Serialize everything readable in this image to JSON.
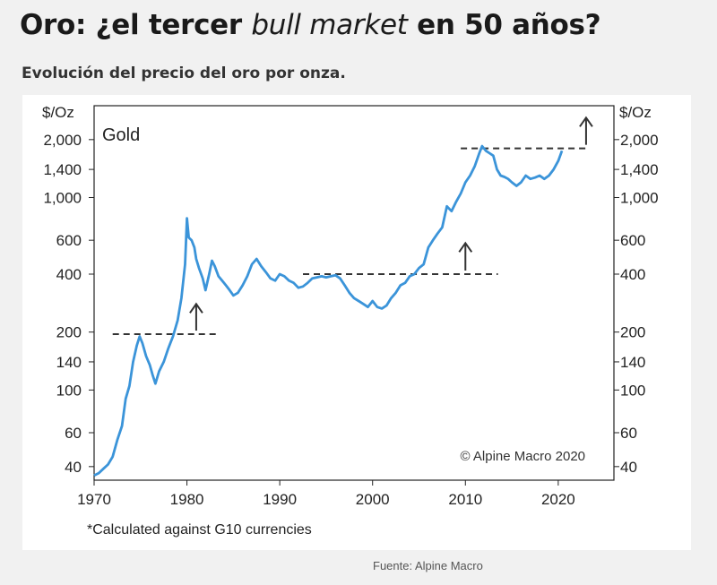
{
  "headline": {
    "part1": "Oro: ¿el tercer ",
    "italic": "bull market",
    "part2": " en 50 años?"
  },
  "subheadline": "Evolución del precio del oro por onza.",
  "source": "Fuente: Alpine Macro",
  "chart_data": {
    "type": "line",
    "title": "",
    "series_label": "Gold",
    "y_unit_left": "$/Oz",
    "y_unit_right": "$/Oz",
    "y_scale": "log",
    "ylim": [
      34,
      3000
    ],
    "xlim": [
      1970,
      2026
    ],
    "x_ticks": [
      "1970",
      "1980",
      "1990",
      "2000",
      "2010",
      "2020"
    ],
    "y_ticks": [
      {
        "value": 2000,
        "label": "2,000"
      },
      {
        "value": 1400,
        "label": "1,400"
      },
      {
        "value": 1000,
        "label": "1,000"
      },
      {
        "value": 600,
        "label": "600"
      },
      {
        "value": 400,
        "label": "400"
      },
      {
        "value": 200,
        "label": "200"
      },
      {
        "value": 140,
        "label": "140"
      },
      {
        "value": 100,
        "label": "100"
      },
      {
        "value": 60,
        "label": "60"
      },
      {
        "value": 40,
        "label": "40"
      }
    ],
    "copyright": "© Alpine Macro 2020",
    "footnote": "*Calculated against G10 currencies",
    "reference_lines": [
      {
        "y": 195,
        "x_start": 1972,
        "x_end": 1983.5
      },
      {
        "y": 400,
        "x_start": 1992.5,
        "x_end": 2013.5
      },
      {
        "y": 1800,
        "x_start": 2009.5,
        "x_end": 2023
      }
    ],
    "arrows": [
      {
        "x": 1981,
        "y_from": 195,
        "y_to": 280
      },
      {
        "x": 2010,
        "y_from": 400,
        "y_to": 580
      },
      {
        "x": 2023,
        "y_from": 1800,
        "y_to": 2600
      }
    ],
    "series": [
      {
        "name": "Gold",
        "color": "#3b94d9",
        "points": [
          [
            1970.0,
            36
          ],
          [
            1970.5,
            37
          ],
          [
            1971.0,
            39
          ],
          [
            1971.5,
            41
          ],
          [
            1972.0,
            45
          ],
          [
            1972.5,
            55
          ],
          [
            1973.0,
            65
          ],
          [
            1973.4,
            90
          ],
          [
            1973.8,
            105
          ],
          [
            1974.2,
            140
          ],
          [
            1974.6,
            170
          ],
          [
            1974.9,
            190
          ],
          [
            1975.2,
            175
          ],
          [
            1975.6,
            150
          ],
          [
            1976.0,
            135
          ],
          [
            1976.3,
            120
          ],
          [
            1976.6,
            108
          ],
          [
            1977.0,
            125
          ],
          [
            1977.5,
            140
          ],
          [
            1978.0,
            165
          ],
          [
            1978.5,
            190
          ],
          [
            1979.0,
            230
          ],
          [
            1979.4,
            300
          ],
          [
            1979.8,
            450
          ],
          [
            1980.0,
            780
          ],
          [
            1980.2,
            620
          ],
          [
            1980.5,
            600
          ],
          [
            1980.8,
            550
          ],
          [
            1981.0,
            480
          ],
          [
            1981.3,
            430
          ],
          [
            1981.7,
            380
          ],
          [
            1982.0,
            330
          ],
          [
            1982.4,
            400
          ],
          [
            1982.7,
            470
          ],
          [
            1983.0,
            440
          ],
          [
            1983.4,
            390
          ],
          [
            1983.8,
            370
          ],
          [
            1984.2,
            350
          ],
          [
            1984.6,
            330
          ],
          [
            1985.0,
            310
          ],
          [
            1985.5,
            320
          ],
          [
            1986.0,
            350
          ],
          [
            1986.5,
            390
          ],
          [
            1987.0,
            450
          ],
          [
            1987.5,
            480
          ],
          [
            1988.0,
            440
          ],
          [
            1988.5,
            410
          ],
          [
            1989.0,
            380
          ],
          [
            1989.5,
            370
          ],
          [
            1990.0,
            400
          ],
          [
            1990.5,
            390
          ],
          [
            1991.0,
            370
          ],
          [
            1991.5,
            360
          ],
          [
            1992.0,
            340
          ],
          [
            1992.5,
            345
          ],
          [
            1993.0,
            360
          ],
          [
            1993.5,
            380
          ],
          [
            1994.0,
            385
          ],
          [
            1994.5,
            390
          ],
          [
            1995.0,
            385
          ],
          [
            1995.5,
            390
          ],
          [
            1996.0,
            395
          ],
          [
            1996.5,
            380
          ],
          [
            1997.0,
            350
          ],
          [
            1997.5,
            320
          ],
          [
            1998.0,
            300
          ],
          [
            1998.5,
            290
          ],
          [
            1999.0,
            280
          ],
          [
            1999.5,
            270
          ],
          [
            2000.0,
            290
          ],
          [
            2000.5,
            270
          ],
          [
            2001.0,
            265
          ],
          [
            2001.5,
            275
          ],
          [
            2002.0,
            300
          ],
          [
            2002.5,
            320
          ],
          [
            2003.0,
            350
          ],
          [
            2003.5,
            360
          ],
          [
            2004.0,
            390
          ],
          [
            2004.5,
            400
          ],
          [
            2005.0,
            430
          ],
          [
            2005.5,
            450
          ],
          [
            2006.0,
            550
          ],
          [
            2006.5,
            600
          ],
          [
            2007.0,
            650
          ],
          [
            2007.5,
            700
          ],
          [
            2008.0,
            900
          ],
          [
            2008.5,
            850
          ],
          [
            2009.0,
            950
          ],
          [
            2009.5,
            1050
          ],
          [
            2010.0,
            1200
          ],
          [
            2010.5,
            1300
          ],
          [
            2011.0,
            1450
          ],
          [
            2011.5,
            1700
          ],
          [
            2011.8,
            1850
          ],
          [
            2012.2,
            1750
          ],
          [
            2012.6,
            1700
          ],
          [
            2013.0,
            1650
          ],
          [
            2013.4,
            1400
          ],
          [
            2013.8,
            1300
          ],
          [
            2014.2,
            1280
          ],
          [
            2014.6,
            1250
          ],
          [
            2015.0,
            1200
          ],
          [
            2015.5,
            1150
          ],
          [
            2016.0,
            1200
          ],
          [
            2016.5,
            1300
          ],
          [
            2017.0,
            1250
          ],
          [
            2017.5,
            1270
          ],
          [
            2018.0,
            1300
          ],
          [
            2018.5,
            1250
          ],
          [
            2019.0,
            1300
          ],
          [
            2019.5,
            1400
          ],
          [
            2020.0,
            1550
          ],
          [
            2020.4,
            1750
          ]
        ]
      }
    ]
  }
}
